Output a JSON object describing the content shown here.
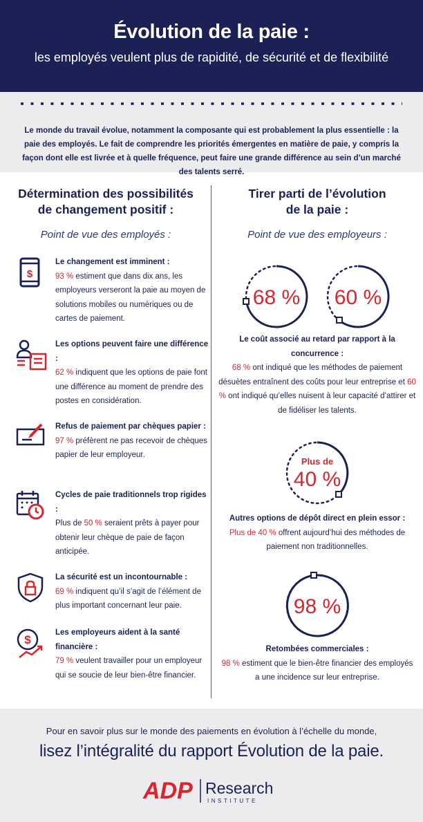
{
  "header": {
    "title": "Évolution de la paie :",
    "subtitle": "les employés veulent plus de rapidité, de sécurité et de flexibilité"
  },
  "intro": "Le monde du travail évolue, notamment la composante qui est probablement la plus essentielle : la paie des employés. Le fait de comprendre les priorités émergentes en matière de paie, y compris la façon dont elle est livrée et à quelle fréquence, peut faire une grande différence au sein d’un marché des talents serré.",
  "left": {
    "title_line1": "Détermination des possibilités",
    "title_line2": "de changement positif :",
    "subtitle": "Point de vue des employés :",
    "items": [
      {
        "icon": "mobile-payment-icon",
        "title": "Le changement est imminent :",
        "value": "93 %",
        "text": " estiment que dans dix ans, les employeurs verseront la paie au moyen de solutions mobiles ou numériques ou de cartes de paiement."
      },
      {
        "icon": "person-options-icon",
        "title": "Les options peuvent faire une différence :",
        "value": "62 %",
        "text": " indiquent que les options de paie font une différence au moment de prendre des postes en considération."
      },
      {
        "icon": "check-sign-icon",
        "title": "Refus de paiement par chèques papier :",
        "value": "97 %",
        "text": " préfèrent ne pas recevoir de chèques papier de leur employeur."
      },
      {
        "icon": "calendar-clock-icon",
        "title": "Cycles de paie traditionnels trop rigides :",
        "prefix": "Plus de ",
        "value": "50 %",
        "text": " seraient prêts à payer pour obtenir leur chèque de paie de façon anticipée."
      },
      {
        "icon": "shield-lock-icon",
        "title": "La sécurité est un incontournable :",
        "value": "69 %",
        "text": " indiquent qu’il s’agit de l’élément de plus important concernant leur paie."
      },
      {
        "icon": "dollar-growth-icon",
        "title": "Les employeurs aident à la santé financière :",
        "value": "79 %",
        "text": " veulent travailler pour un employeur qui se soucie de leur bien-être financier."
      }
    ]
  },
  "right": {
    "title_line1": "Tirer parti de l’évolution",
    "title_line2": "de la paie :",
    "subtitle": "Point de vue des employeurs :",
    "stats": {
      "s1": "68 %",
      "s2": "60 %",
      "s3_prefix": "Plus de",
      "s3": "40 %",
      "s4": "98 %"
    },
    "blocks": [
      {
        "title": "Le coût associé au retard par rapport à la concurrence :",
        "v1": "68 %",
        "t1": " ont indiqué que les méthodes de paiement désuètes entraînent des coûts pour leur entreprise et ",
        "v2": "60 %",
        "t2": " ont indiqué qu’elles nuisent à leur capacité d’attirer et de fidéliser les talents."
      },
      {
        "title": "Autres options de dépôt direct en plein essor :",
        "v1": "Plus de 40 %",
        "t1": " offrent aujourd’hui des méthodes de paiement non traditionnelles."
      },
      {
        "title": "Retombées commerciales :",
        "v1": "98 %",
        "t1": " estiment que le bien-être financier des employés a une incidence sur leur entreprise."
      }
    ]
  },
  "footer": {
    "line1": "Pour en savoir plus sur le monde des paiements en évolution à l’échelle du monde,",
    "line2": "lisez l’intégralité du rapport Évolution de la paie.",
    "logo_brand": "ADP",
    "logo_name": "Research",
    "logo_sub": "INSTITUTE"
  },
  "colors": {
    "navy": "#1c2155",
    "red": "#d8262f",
    "grey": "#ececef"
  }
}
